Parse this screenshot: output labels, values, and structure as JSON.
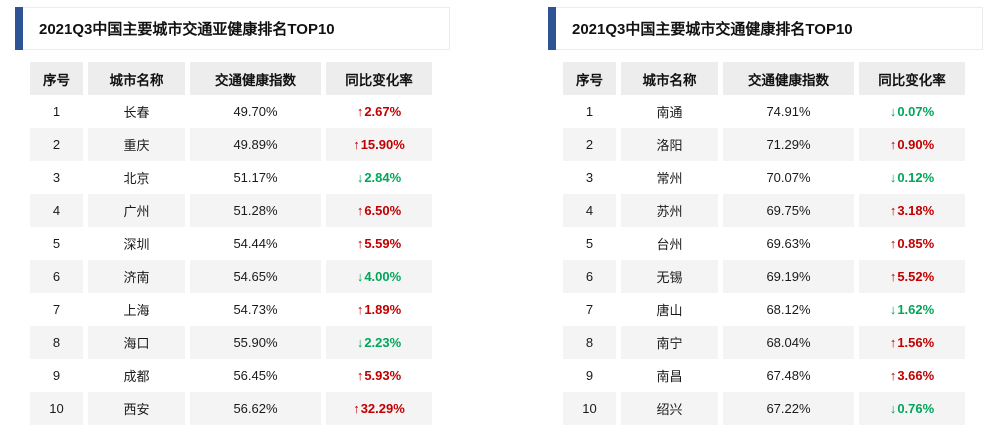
{
  "colors": {
    "accent-blue": "#2F5496",
    "up-red": "#C00000",
    "down-green": "#00A65A",
    "header-bg": "#EDEDED",
    "stripe-bg": "#F4F4F4",
    "title-border": "#ECECEC"
  },
  "icons": {
    "up": "↑",
    "down": "↓"
  },
  "chart_data": [
    {
      "type": "table",
      "title": "2021Q3中国主要城市交通亚健康排名TOP10",
      "columns": [
        "序号",
        "城市名称",
        "交通健康指数",
        "同比变化率"
      ],
      "rows": [
        {
          "rank": "1",
          "city": "长春",
          "index": "49.70%",
          "change": "2.67%",
          "direction": "up"
        },
        {
          "rank": "2",
          "city": "重庆",
          "index": "49.89%",
          "change": "15.90%",
          "direction": "up"
        },
        {
          "rank": "3",
          "city": "北京",
          "index": "51.17%",
          "change": "2.84%",
          "direction": "down"
        },
        {
          "rank": "4",
          "city": "广州",
          "index": "51.28%",
          "change": "6.50%",
          "direction": "up"
        },
        {
          "rank": "5",
          "city": "深圳",
          "index": "54.44%",
          "change": "5.59%",
          "direction": "up"
        },
        {
          "rank": "6",
          "city": "济南",
          "index": "54.65%",
          "change": "4.00%",
          "direction": "down"
        },
        {
          "rank": "7",
          "city": "上海",
          "index": "54.73%",
          "change": "1.89%",
          "direction": "up"
        },
        {
          "rank": "8",
          "city": "海口",
          "index": "55.90%",
          "change": "2.23%",
          "direction": "down"
        },
        {
          "rank": "9",
          "city": "成都",
          "index": "56.45%",
          "change": "5.93%",
          "direction": "up"
        },
        {
          "rank": "10",
          "city": "西安",
          "index": "56.62%",
          "change": "32.29%",
          "direction": "up"
        }
      ]
    },
    {
      "type": "table",
      "title": "2021Q3中国主要城市交通健康排名TOP10",
      "columns": [
        "序号",
        "城市名称",
        "交通健康指数",
        "同比变化率"
      ],
      "rows": [
        {
          "rank": "1",
          "city": "南通",
          "index": "74.91%",
          "change": "0.07%",
          "direction": "down"
        },
        {
          "rank": "2",
          "city": "洛阳",
          "index": "71.29%",
          "change": "0.90%",
          "direction": "up"
        },
        {
          "rank": "3",
          "city": "常州",
          "index": "70.07%",
          "change": "0.12%",
          "direction": "down"
        },
        {
          "rank": "4",
          "city": "苏州",
          "index": "69.75%",
          "change": "3.18%",
          "direction": "up"
        },
        {
          "rank": "5",
          "city": "台州",
          "index": "69.63%",
          "change": "0.85%",
          "direction": "up"
        },
        {
          "rank": "6",
          "city": "无锡",
          "index": "69.19%",
          "change": "5.52%",
          "direction": "up"
        },
        {
          "rank": "7",
          "city": "唐山",
          "index": "68.12%",
          "change": "1.62%",
          "direction": "down"
        },
        {
          "rank": "8",
          "city": "南宁",
          "index": "68.04%",
          "change": "1.56%",
          "direction": "up"
        },
        {
          "rank": "9",
          "city": "南昌",
          "index": "67.48%",
          "change": "3.66%",
          "direction": "up"
        },
        {
          "rank": "10",
          "city": "绍兴",
          "index": "67.22%",
          "change": "0.76%",
          "direction": "down"
        }
      ]
    }
  ]
}
